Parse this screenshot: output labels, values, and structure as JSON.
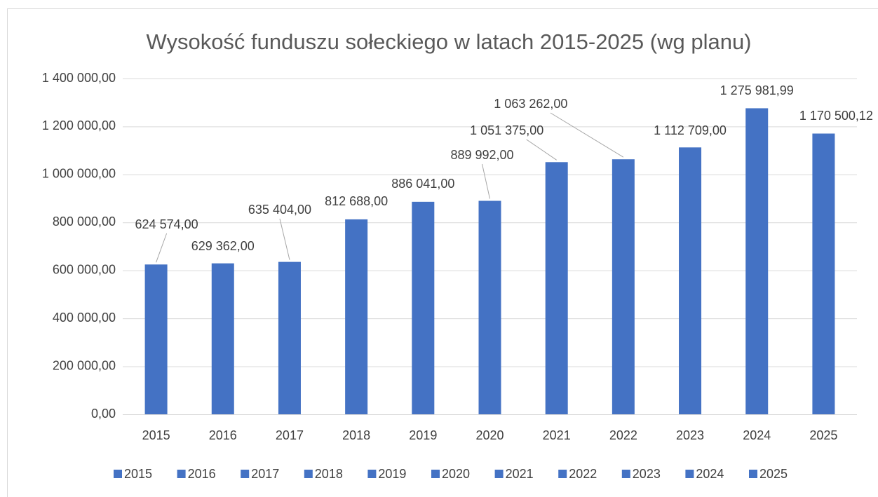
{
  "chart_data": {
    "type": "bar",
    "title": "Wysokość funduszu sołeckiego  w latach 2015-2025 (wg planu)",
    "categories": [
      "2015",
      "2016",
      "2017",
      "2018",
      "2019",
      "2020",
      "2021",
      "2022",
      "2023",
      "2024",
      "2025"
    ],
    "values": [
      624574,
      629362,
      635404,
      812688,
      886041,
      889992,
      1051375,
      1063262,
      1112709,
      1275981.99,
      1170500.12
    ],
    "value_labels": [
      "624 574,00",
      "629 362,00",
      "635 404,00",
      "812 688,00",
      "886 041,00",
      "889 992,00",
      "1 051 375,00",
      "1 063 262,00",
      "1 112 709,00",
      "1 275 981,99",
      "1 170 500,12"
    ],
    "color": "#4472c4",
    "ylim": [
      0,
      1400000
    ],
    "yticks": [
      {
        "value": 0,
        "label": "0,00"
      },
      {
        "value": 200000,
        "label": "200 000,00"
      },
      {
        "value": 400000,
        "label": "400 000,00"
      },
      {
        "value": 600000,
        "label": "600 000,00"
      },
      {
        "value": 800000,
        "label": "800 000,00"
      },
      {
        "value": 1000000,
        "label": "1 000 000,00"
      },
      {
        "value": 1200000,
        "label": "1 200 000,00"
      },
      {
        "value": 1400000,
        "label": "1 400 000,00"
      }
    ],
    "grid": true,
    "legend": "bottom"
  }
}
